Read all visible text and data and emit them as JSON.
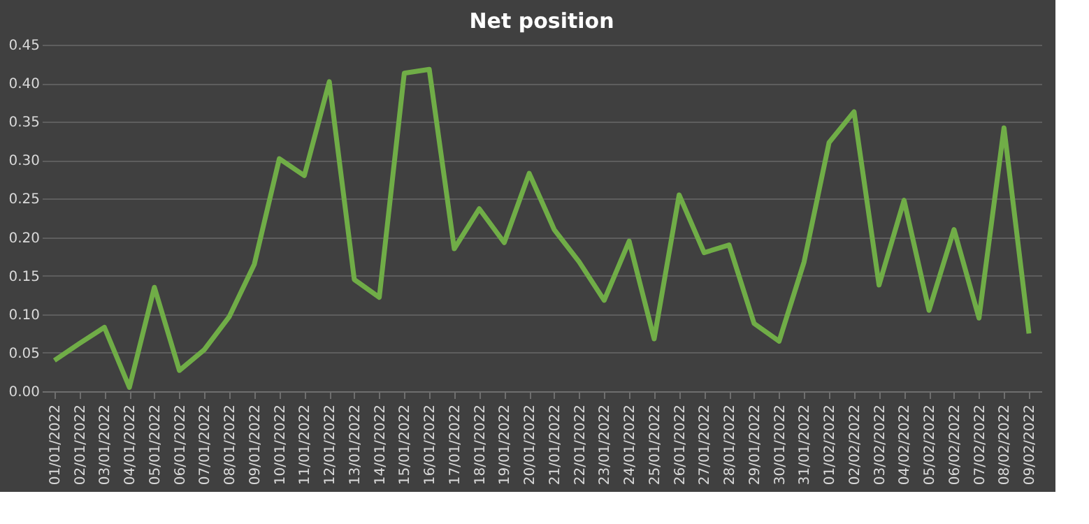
{
  "chart_data": {
    "type": "line",
    "title": "Net position",
    "categories": [
      "01/01/2022",
      "02/01/2022",
      "03/01/2022",
      "04/01/2022",
      "05/01/2022",
      "06/01/2022",
      "07/01/2022",
      "08/01/2022",
      "09/01/2022",
      "10/01/2022",
      "11/01/2022",
      "12/01/2022",
      "13/01/2022",
      "14/01/2022",
      "15/01/2022",
      "16/01/2022",
      "17/01/2022",
      "18/01/2022",
      "19/01/2022",
      "20/01/2022",
      "21/01/2022",
      "22/01/2022",
      "23/01/2022",
      "24/01/2022",
      "25/01/2022",
      "26/01/2022",
      "27/01/2022",
      "28/01/2022",
      "29/01/2022",
      "30/01/2022",
      "31/01/2022",
      "01/02/2022",
      "02/02/2022",
      "03/02/2022",
      "04/02/2022",
      "05/02/2022",
      "06/02/2022",
      "07/02/2022",
      "08/02/2022",
      "09/02/2022"
    ],
    "series": [
      {
        "color": "#70ad47",
        "values": [
          0.04,
          0.062,
          0.083,
          0.005,
          0.135,
          0.027,
          0.054,
          0.097,
          0.165,
          0.302,
          0.28,
          0.402,
          0.145,
          0.122,
          0.413,
          0.418,
          0.185,
          0.237,
          0.193,
          0.283,
          0.21,
          0.168,
          0.118,
          0.195,
          0.068,
          0.255,
          0.18,
          0.19,
          0.088,
          0.065,
          0.168,
          0.323,
          0.363,
          0.138,
          0.248,
          0.105,
          0.21,
          0.095,
          0.342,
          0.075
        ]
      }
    ],
    "ylim": [
      0,
      0.45
    ],
    "yticks": [
      {
        "value": 0,
        "label": "0.00"
      },
      {
        "value": 0.05,
        "label": "0.05"
      },
      {
        "value": 0.1,
        "label": "0.10"
      },
      {
        "value": 0.15,
        "label": "0.15"
      },
      {
        "value": 0.2,
        "label": "0.20"
      },
      {
        "value": 0.25,
        "label": "0.25"
      },
      {
        "value": 0.3,
        "label": "0.30"
      },
      {
        "value": 0.35,
        "label": "0.35"
      },
      {
        "value": 0.4,
        "label": "0.40"
      },
      {
        "value": 0.45,
        "label": "0.45"
      }
    ],
    "grid": "y",
    "marker": "none",
    "line_style": "solid"
  }
}
